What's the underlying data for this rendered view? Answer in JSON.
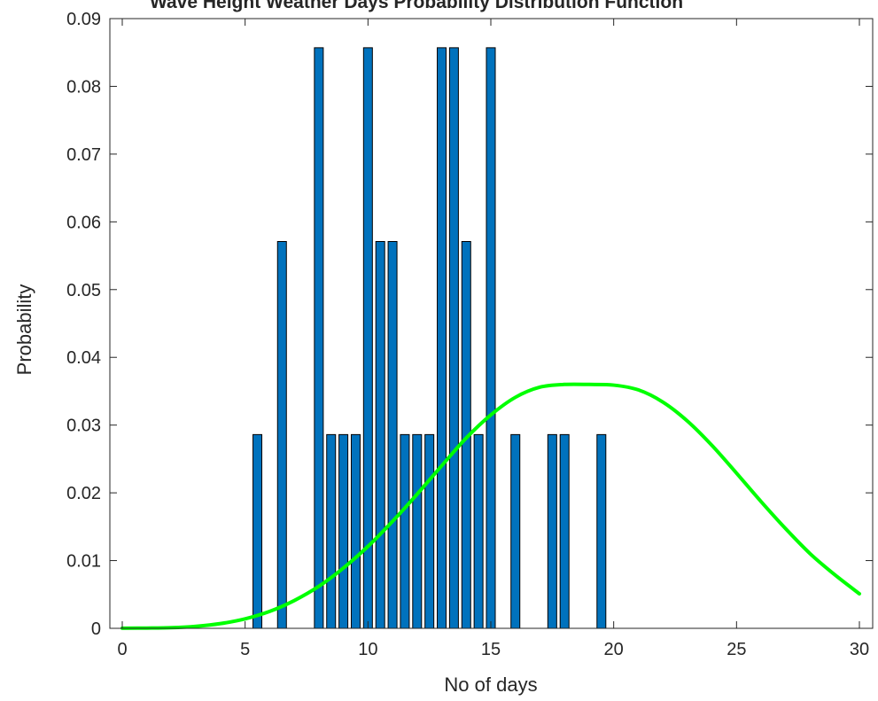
{
  "chart_data": {
    "type": "bar",
    "title": "Wave Height Weather Days Probability Distribution Function",
    "xlabel": "No of days",
    "ylabel": "Probability",
    "xlim": [
      0,
      30
    ],
    "ylim": [
      0,
      0.09
    ],
    "xticks": [
      "0",
      "5",
      "10",
      "15",
      "20",
      "25",
      "30"
    ],
    "yticks": [
      "0",
      "0.01",
      "0.02",
      "0.03",
      "0.04",
      "0.05",
      "0.06",
      "0.07",
      "0.08",
      "0.09"
    ],
    "grid": false,
    "bar_color": "#0072BD",
    "bars": [
      {
        "x": 5.5,
        "y": 0.0286
      },
      {
        "x": 6.5,
        "y": 0.0571
      },
      {
        "x": 8.0,
        "y": 0.0857
      },
      {
        "x": 8.5,
        "y": 0.0286
      },
      {
        "x": 9.0,
        "y": 0.0286
      },
      {
        "x": 9.5,
        "y": 0.0286
      },
      {
        "x": 10.0,
        "y": 0.0857
      },
      {
        "x": 10.5,
        "y": 0.0571
      },
      {
        "x": 11.0,
        "y": 0.0571
      },
      {
        "x": 11.5,
        "y": 0.0286
      },
      {
        "x": 12.0,
        "y": 0.0286
      },
      {
        "x": 12.5,
        "y": 0.0286
      },
      {
        "x": 13.0,
        "y": 0.0857
      },
      {
        "x": 13.5,
        "y": 0.0857
      },
      {
        "x": 14.0,
        "y": 0.0571
      },
      {
        "x": 14.5,
        "y": 0.0286
      },
      {
        "x": 15.0,
        "y": 0.0857
      },
      {
        "x": 16.0,
        "y": 0.0286
      },
      {
        "x": 17.5,
        "y": 0.0286
      },
      {
        "x": 18.0,
        "y": 0.0286
      },
      {
        "x": 19.5,
        "y": 0.0286
      }
    ],
    "curve": {
      "color": "#00FF00",
      "points": [
        [
          0,
          2e-05
        ],
        [
          1,
          4e-05
        ],
        [
          2,
          0.0001
        ],
        [
          3,
          0.0003
        ],
        [
          4,
          0.0007
        ],
        [
          5,
          0.0014
        ],
        [
          6,
          0.0025
        ],
        [
          7,
          0.0041
        ],
        [
          8,
          0.0062
        ],
        [
          9,
          0.0089
        ],
        [
          10,
          0.0121
        ],
        [
          11,
          0.0158
        ],
        [
          12,
          0.0198
        ],
        [
          13,
          0.024
        ],
        [
          14,
          0.0281
        ],
        [
          15,
          0.0315
        ],
        [
          16,
          0.0341
        ],
        [
          17,
          0.0356
        ],
        [
          18,
          0.036
        ],
        [
          19,
          0.036
        ],
        [
          20,
          0.0359
        ],
        [
          21,
          0.0352
        ],
        [
          22,
          0.0334
        ],
        [
          23,
          0.0306
        ],
        [
          24,
          0.027
        ],
        [
          25,
          0.0229
        ],
        [
          26,
          0.0187
        ],
        [
          27,
          0.0147
        ],
        [
          28,
          0.011
        ],
        [
          29,
          0.0079
        ],
        [
          30,
          0.0051
        ]
      ]
    }
  }
}
